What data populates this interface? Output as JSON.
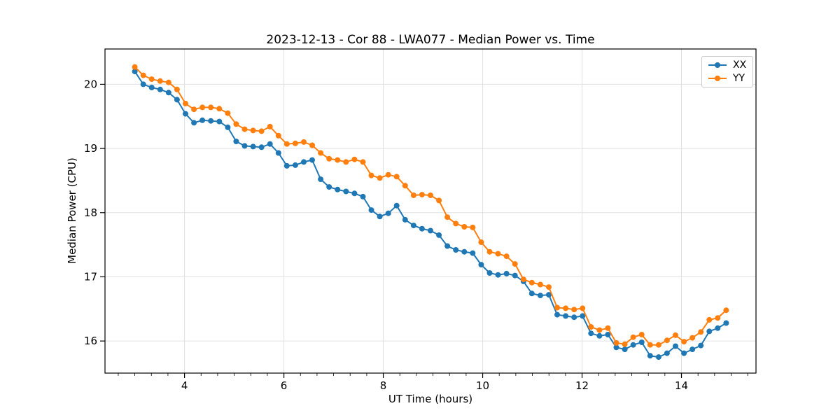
{
  "title": "2023-12-13 - Cor 88 - LWA077 - Median Power vs. Time",
  "legend": {
    "items": [
      {
        "label": "XX",
        "color": "#1f77b4"
      },
      {
        "label": "YY",
        "color": "#ff7f0e"
      }
    ]
  },
  "chart_data": {
    "type": "line",
    "title": "2023-12-13 - Cor 88 - LWA077 - Median Power vs. Time",
    "xlabel": "UT Time (hours)",
    "ylabel": "Median Power (CPU)",
    "xlim": [
      2.4,
      15.5
    ],
    "ylim": [
      15.5,
      20.55
    ],
    "xticks": [
      4,
      6,
      8,
      10,
      12,
      14
    ],
    "yticks": [
      16,
      17,
      18,
      19,
      20
    ],
    "x_minor_step": 0.3333333,
    "grid": true,
    "grid_color": "#e0e0e0",
    "background": "#ffffff",
    "legend_position": "upper right",
    "marker": "circle",
    "marker_radius": 4,
    "line_width": 2,
    "n_points": 71,
    "x_start": 3.0,
    "x_step": 0.17,
    "series": [
      {
        "name": "XX",
        "color": "#1f77b4",
        "values": [
          20.2,
          20.0,
          19.95,
          19.92,
          19.87,
          19.76,
          19.54,
          19.4,
          19.44,
          19.43,
          19.42,
          19.33,
          19.11,
          19.04,
          19.03,
          19.02,
          19.07,
          18.93,
          18.73,
          18.74,
          18.79,
          18.82,
          18.52,
          18.4,
          18.36,
          18.33,
          18.3,
          18.25,
          18.04,
          17.94,
          17.99,
          18.11,
          17.89,
          17.8,
          17.75,
          17.72,
          17.65,
          17.48,
          17.42,
          17.39,
          17.37,
          17.19,
          17.06,
          17.03,
          17.05,
          17.02,
          16.93,
          16.74,
          16.71,
          16.72,
          16.41,
          16.39,
          16.37,
          16.39,
          16.12,
          16.08,
          16.1,
          15.9,
          15.87,
          15.94,
          15.98,
          15.77,
          15.75,
          15.81,
          15.92,
          15.81,
          15.87,
          15.93,
          16.15,
          16.2,
          16.28
        ]
      },
      {
        "name": "YY",
        "color": "#ff7f0e",
        "values": [
          20.27,
          20.14,
          20.08,
          20.05,
          20.03,
          19.92,
          19.7,
          19.61,
          19.64,
          19.64,
          19.62,
          19.55,
          19.38,
          19.3,
          19.28,
          19.27,
          19.34,
          19.2,
          19.07,
          19.08,
          19.1,
          19.05,
          18.93,
          18.84,
          18.82,
          18.79,
          18.83,
          18.79,
          18.58,
          18.54,
          18.59,
          18.56,
          18.42,
          18.27,
          18.28,
          18.27,
          18.19,
          17.93,
          17.83,
          17.78,
          17.77,
          17.54,
          17.39,
          17.36,
          17.32,
          17.2,
          16.96,
          16.91,
          16.88,
          16.84,
          16.52,
          16.51,
          16.49,
          16.51,
          16.22,
          16.17,
          16.2,
          15.97,
          15.95,
          16.06,
          16.1,
          15.94,
          15.94,
          16.01,
          16.09,
          15.99,
          16.05,
          16.14,
          16.33,
          16.36,
          16.48
        ]
      }
    ]
  }
}
